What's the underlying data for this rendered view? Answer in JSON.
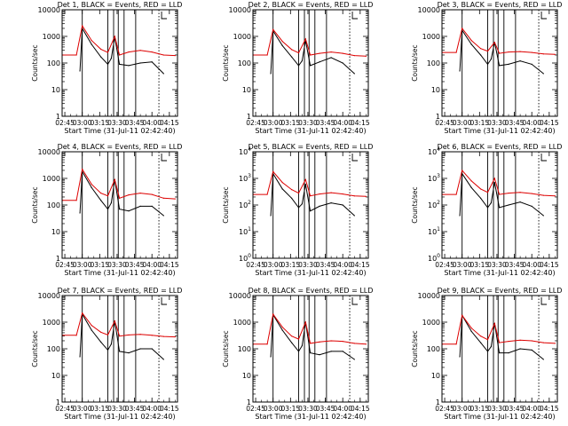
{
  "figure": {
    "xlabel": "Start Time (31-Jul-11 02:42:40)",
    "ylabel": "Counts/sec",
    "xticks": [
      "02:45",
      "03:00",
      "03:15",
      "03:30",
      "03:45",
      "04:00",
      "04:15"
    ],
    "colors": {
      "events": "#000000",
      "lld": "#dd0000"
    }
  },
  "chart_data": [
    {
      "type": "line",
      "title": "Det 1, BLACK = Events, RED = LLD",
      "ytick_style": "decimal",
      "yticks": [
        "1",
        "10",
        "100",
        "1000",
        "10000"
      ],
      "ylim": [
        1,
        10000
      ],
      "yscale": "log",
      "xlim": [
        "02:42:40",
        "04:22:00"
      ],
      "event_lines": [
        "03:00",
        "03:22",
        "03:27",
        "03:31",
        "03:36",
        "03:46"
      ],
      "dotted_lines": [
        "04:06"
      ],
      "series": [
        {
          "name": "BLACK = Events",
          "x": [
            "02:58",
            "03:00",
            "03:08",
            "03:16",
            "03:22",
            "03:25",
            "03:28",
            "03:32",
            "03:40",
            "03:50",
            "04:00",
            "04:10"
          ],
          "y": [
            50,
            2000,
            500,
            170,
            90,
            150,
            950,
            90,
            80,
            100,
            110,
            40
          ]
        },
        {
          "name": "RED = LLD",
          "x": [
            "02:43",
            "02:55",
            "03:00",
            "03:08",
            "03:16",
            "03:22",
            "03:28",
            "03:32",
            "03:40",
            "03:50",
            "04:00",
            "04:10",
            "04:20"
          ],
          "y": [
            200,
            200,
            2500,
            700,
            330,
            250,
            1000,
            200,
            260,
            300,
            260,
            200,
            190
          ]
        }
      ]
    },
    {
      "type": "line",
      "title": "Det 2, BLACK = Events, RED = LLD",
      "ytick_style": "decimal",
      "yticks": [
        "1",
        "10",
        "100",
        "1000",
        "10000"
      ],
      "ylim": [
        1,
        10000
      ],
      "yscale": "log",
      "xlim": [
        "02:42:40",
        "04:22:00"
      ],
      "event_lines": [
        "03:00",
        "03:22",
        "03:27",
        "03:31",
        "03:36",
        "03:46"
      ],
      "dotted_lines": [
        "04:06"
      ],
      "series": [
        {
          "name": "BLACK = Events",
          "x": [
            "02:58",
            "03:00",
            "03:08",
            "03:16",
            "03:22",
            "03:25",
            "03:28",
            "03:32",
            "03:40",
            "03:50",
            "04:00",
            "04:10"
          ],
          "y": [
            40,
            1600,
            450,
            170,
            80,
            120,
            700,
            80,
            110,
            160,
            100,
            40
          ]
        },
        {
          "name": "RED = LLD",
          "x": [
            "02:43",
            "02:55",
            "03:00",
            "03:08",
            "03:16",
            "03:22",
            "03:28",
            "03:32",
            "03:40",
            "03:50",
            "04:00",
            "04:10",
            "04:20"
          ],
          "y": [
            200,
            200,
            1800,
            650,
            320,
            240,
            800,
            200,
            230,
            260,
            230,
            190,
            180
          ]
        }
      ]
    },
    {
      "type": "line",
      "title": "Det 3, BLACK = Events, RED = LLD",
      "ytick_style": "decimal",
      "yticks": [
        "1",
        "10",
        "100",
        "1000",
        "10000"
      ],
      "ylim": [
        1,
        10000
      ],
      "yscale": "log",
      "xlim": [
        "02:42:40",
        "04:22:00"
      ],
      "event_lines": [
        "03:00",
        "03:22",
        "03:27",
        "03:31",
        "03:36",
        "03:46"
      ],
      "dotted_lines": [
        "04:06"
      ],
      "series": [
        {
          "name": "BLACK = Events",
          "x": [
            "02:58",
            "03:00",
            "03:08",
            "03:16",
            "03:22",
            "03:25",
            "03:28",
            "03:32",
            "03:40",
            "03:50",
            "04:00",
            "04:10"
          ],
          "y": [
            50,
            1700,
            500,
            200,
            90,
            140,
            600,
            80,
            90,
            120,
            90,
            40
          ]
        },
        {
          "name": "RED = LLD",
          "x": [
            "02:43",
            "02:55",
            "03:00",
            "03:08",
            "03:16",
            "03:22",
            "03:28",
            "03:32",
            "03:40",
            "03:50",
            "04:00",
            "04:10",
            "04:20"
          ],
          "y": [
            250,
            250,
            2000,
            700,
            350,
            280,
            600,
            230,
            260,
            270,
            250,
            220,
            210
          ]
        }
      ]
    },
    {
      "type": "line",
      "title": "Det 4, BLACK = Events, RED = LLD",
      "ytick_style": "decimal",
      "yticks": [
        "1",
        "10",
        "100",
        "1000",
        "10000"
      ],
      "ylim": [
        1,
        10000
      ],
      "yscale": "log",
      "xlim": [
        "02:42:40",
        "04:22:00"
      ],
      "event_lines": [
        "03:00",
        "03:22",
        "03:27",
        "03:31",
        "03:36",
        "03:46"
      ],
      "dotted_lines": [
        "04:06"
      ],
      "series": [
        {
          "name": "BLACK = Events",
          "x": [
            "02:58",
            "03:00",
            "03:08",
            "03:16",
            "03:22",
            "03:25",
            "03:28",
            "03:32",
            "03:40",
            "03:50",
            "04:00",
            "04:10"
          ],
          "y": [
            50,
            1800,
            450,
            150,
            70,
            120,
            900,
            70,
            60,
            90,
            90,
            40
          ]
        },
        {
          "name": "RED = LLD",
          "x": [
            "02:43",
            "02:55",
            "03:00",
            "03:08",
            "03:16",
            "03:22",
            "03:28",
            "03:32",
            "03:40",
            "03:50",
            "04:00",
            "04:10",
            "04:20"
          ],
          "y": [
            150,
            150,
            2200,
            600,
            280,
            220,
            900,
            180,
            240,
            280,
            250,
            180,
            170
          ]
        }
      ]
    },
    {
      "type": "line",
      "title": "Det 5, BLACK = Events, RED = LLD",
      "ytick_style": "power",
      "yticks": [
        "1",
        "10",
        "100",
        "1000",
        "10000"
      ],
      "ylim": [
        1,
        10000
      ],
      "yscale": "log",
      "xlim": [
        "02:42:40",
        "04:22:00"
      ],
      "event_lines": [
        "03:00",
        "03:22",
        "03:27",
        "03:31",
        "03:36",
        "03:46"
      ],
      "dotted_lines": [
        "04:06"
      ],
      "series": [
        {
          "name": "BLACK = Events",
          "x": [
            "02:58",
            "03:00",
            "03:08",
            "03:16",
            "03:22",
            "03:25",
            "03:28",
            "03:32",
            "03:40",
            "03:50",
            "04:00",
            "04:10"
          ],
          "y": [
            40,
            1500,
            400,
            180,
            80,
            110,
            600,
            60,
            90,
            120,
            100,
            40
          ]
        },
        {
          "name": "RED = LLD",
          "x": [
            "02:43",
            "02:55",
            "03:00",
            "03:08",
            "03:16",
            "03:22",
            "03:28",
            "03:32",
            "03:40",
            "03:50",
            "04:00",
            "04:10",
            "04:20"
          ],
          "y": [
            250,
            250,
            1800,
            700,
            380,
            280,
            900,
            220,
            260,
            290,
            260,
            220,
            210
          ]
        }
      ]
    },
    {
      "type": "line",
      "title": "Det 6, BLACK = Events, RED = LLD",
      "ytick_style": "power",
      "yticks": [
        "1",
        "10",
        "100",
        "1000",
        "10000"
      ],
      "ylim": [
        1,
        10000
      ],
      "yscale": "log",
      "xlim": [
        "02:42:40",
        "04:22:00"
      ],
      "event_lines": [
        "03:00",
        "03:22",
        "03:27",
        "03:31",
        "03:36",
        "03:46"
      ],
      "dotted_lines": [
        "04:06"
      ],
      "series": [
        {
          "name": "BLACK = Events",
          "x": [
            "02:58",
            "03:00",
            "03:08",
            "03:16",
            "03:22",
            "03:25",
            "03:28",
            "03:32",
            "03:40",
            "03:50",
            "04:00",
            "04:10"
          ],
          "y": [
            40,
            1500,
            450,
            180,
            80,
            120,
            700,
            80,
            100,
            130,
            90,
            40
          ]
        },
        {
          "name": "RED = LLD",
          "x": [
            "02:43",
            "02:55",
            "03:00",
            "03:08",
            "03:16",
            "03:22",
            "03:28",
            "03:32",
            "03:40",
            "03:50",
            "04:00",
            "04:10",
            "04:20"
          ],
          "y": [
            250,
            250,
            2000,
            800,
            400,
            300,
            1000,
            250,
            280,
            300,
            270,
            230,
            220
          ]
        }
      ]
    },
    {
      "type": "line",
      "title": "Det 7, BLACK = Events, RED = LLD",
      "ytick_style": "decimal",
      "yticks": [
        "1",
        "10",
        "100",
        "1000",
        "10000"
      ],
      "ylim": [
        1,
        10000
      ],
      "yscale": "log",
      "xlim": [
        "02:42:40",
        "04:22:00"
      ],
      "event_lines": [
        "03:00",
        "03:22",
        "03:27",
        "03:31",
        "03:36",
        "03:46"
      ],
      "dotted_lines": [
        "04:06"
      ],
      "series": [
        {
          "name": "BLACK = Events",
          "x": [
            "02:58",
            "03:00",
            "03:08",
            "03:16",
            "03:22",
            "03:25",
            "03:28",
            "03:32",
            "03:40",
            "03:50",
            "04:00",
            "04:10"
          ],
          "y": [
            50,
            2000,
            500,
            180,
            90,
            150,
            1100,
            80,
            70,
            100,
            100,
            40
          ]
        },
        {
          "name": "RED = LLD",
          "x": [
            "02:43",
            "02:55",
            "03:00",
            "03:08",
            "03:16",
            "03:22",
            "03:28",
            "03:32",
            "03:40",
            "03:50",
            "04:00",
            "04:10",
            "04:20"
          ],
          "y": [
            320,
            320,
            2200,
            750,
            420,
            330,
            1100,
            300,
            330,
            350,
            320,
            290,
            280
          ]
        }
      ]
    },
    {
      "type": "line",
      "title": "Det 8, BLACK = Events, RED = LLD",
      "ytick_style": "decimal",
      "yticks": [
        "1",
        "10",
        "100",
        "1000",
        "10000"
      ],
      "ylim": [
        1,
        10000
      ],
      "yscale": "log",
      "xlim": [
        "02:42:40",
        "04:22:00"
      ],
      "event_lines": [
        "03:00",
        "03:22",
        "03:27",
        "03:31",
        "03:36",
        "03:46"
      ],
      "dotted_lines": [
        "04:06"
      ],
      "series": [
        {
          "name": "BLACK = Events",
          "x": [
            "02:58",
            "03:00",
            "03:08",
            "03:16",
            "03:22",
            "03:25",
            "03:28",
            "03:32",
            "03:40",
            "03:50",
            "04:00",
            "04:10"
          ],
          "y": [
            50,
            1900,
            500,
            170,
            80,
            130,
            1000,
            70,
            60,
            80,
            80,
            40
          ]
        },
        {
          "name": "RED = LLD",
          "x": [
            "02:43",
            "02:55",
            "03:00",
            "03:08",
            "03:16",
            "03:22",
            "03:28",
            "03:32",
            "03:40",
            "03:50",
            "04:00",
            "04:10",
            "04:20"
          ],
          "y": [
            150,
            150,
            2000,
            650,
            300,
            230,
            1000,
            160,
            180,
            200,
            190,
            160,
            150
          ]
        }
      ]
    },
    {
      "type": "line",
      "title": "Det 9, BLACK = Events, RED = LLD",
      "ytick_style": "decimal",
      "yticks": [
        "1",
        "10",
        "100",
        "1000",
        "10000"
      ],
      "ylim": [
        1,
        10000
      ],
      "yscale": "log",
      "xlim": [
        "02:42:40",
        "04:22:00"
      ],
      "event_lines": [
        "03:00",
        "03:22",
        "03:27",
        "03:31",
        "03:36",
        "03:46"
      ],
      "dotted_lines": [
        "04:06"
      ],
      "series": [
        {
          "name": "BLACK = Events",
          "x": [
            "02:58",
            "03:00",
            "03:08",
            "03:16",
            "03:22",
            "03:25",
            "03:28",
            "03:32",
            "03:40",
            "03:50",
            "04:00",
            "04:10"
          ],
          "y": [
            50,
            1800,
            450,
            170,
            80,
            120,
            900,
            70,
            70,
            100,
            90,
            40
          ]
        },
        {
          "name": "RED = LLD",
          "x": [
            "02:43",
            "02:55",
            "03:00",
            "03:08",
            "03:16",
            "03:22",
            "03:28",
            "03:32",
            "03:40",
            "03:50",
            "04:00",
            "04:10",
            "04:20"
          ],
          "y": [
            150,
            150,
            1800,
            600,
            300,
            220,
            900,
            170,
            190,
            210,
            200,
            170,
            160
          ]
        }
      ]
    }
  ]
}
